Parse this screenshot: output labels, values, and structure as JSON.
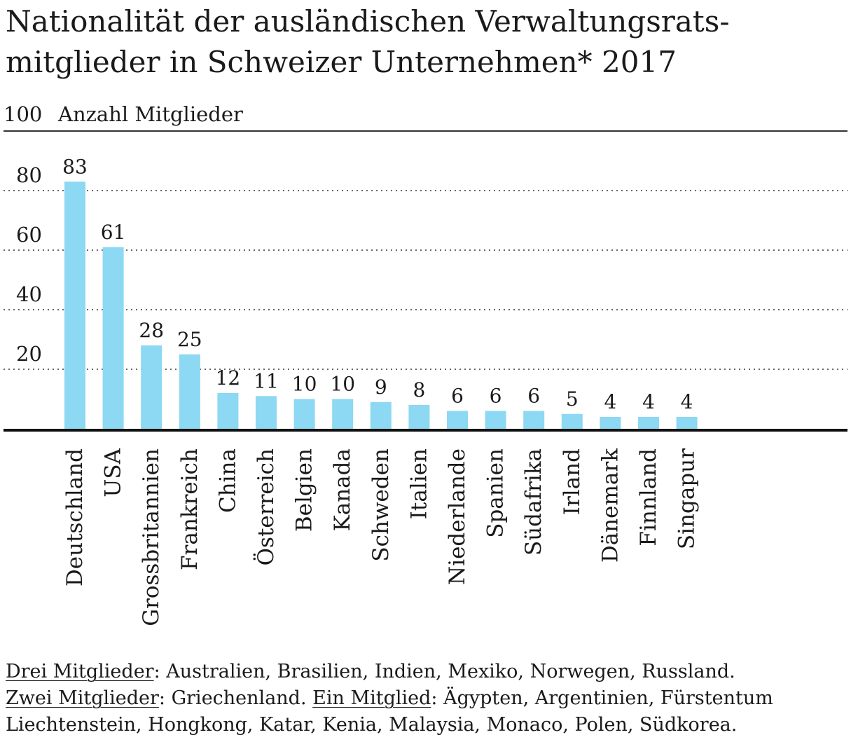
{
  "chart_data": {
    "type": "bar",
    "title": [
      "Nationalität der ausländischen Verwaltungsrats-",
      "mitglieder in Schweizer Unternehmen* 2017"
    ],
    "ylabel": "Anzahl Mitglieder",
    "ylim": [
      0,
      100
    ],
    "yticks": [
      20,
      40,
      60,
      80,
      100
    ],
    "grid": true,
    "bar_color": "#8dd8f2",
    "categories": [
      "Deutschland",
      "USA",
      "Grossbritannien",
      "Frankreich",
      "China",
      "Österreich",
      "Belgien",
      "Kanada",
      "Schweden",
      "Italien",
      "Niederlande",
      "Spanien",
      "Südafrika",
      "Irland",
      "Dänemark",
      "Finnland",
      "Singapur"
    ],
    "values": [
      83,
      61,
      28,
      25,
      12,
      11,
      10,
      10,
      9,
      8,
      6,
      6,
      6,
      5,
      4,
      4,
      4
    ]
  },
  "footnote": {
    "three_label": "Drei Mitglieder",
    "three_text": ": Australien, Brasilien, Indien, Mexiko, Norwegen, Russland.",
    "two_label": "Zwei Mitglieder",
    "two_text": ": Griechenland. ",
    "one_label": "Ein Mitglied",
    "one_text_a": ": Ägypten, Argentinien, Fürstentum",
    "one_text_b": "Liechtenstein, Hongkong, Katar, Kenia, Malaysia, Monaco, Polen, Südkorea."
  }
}
